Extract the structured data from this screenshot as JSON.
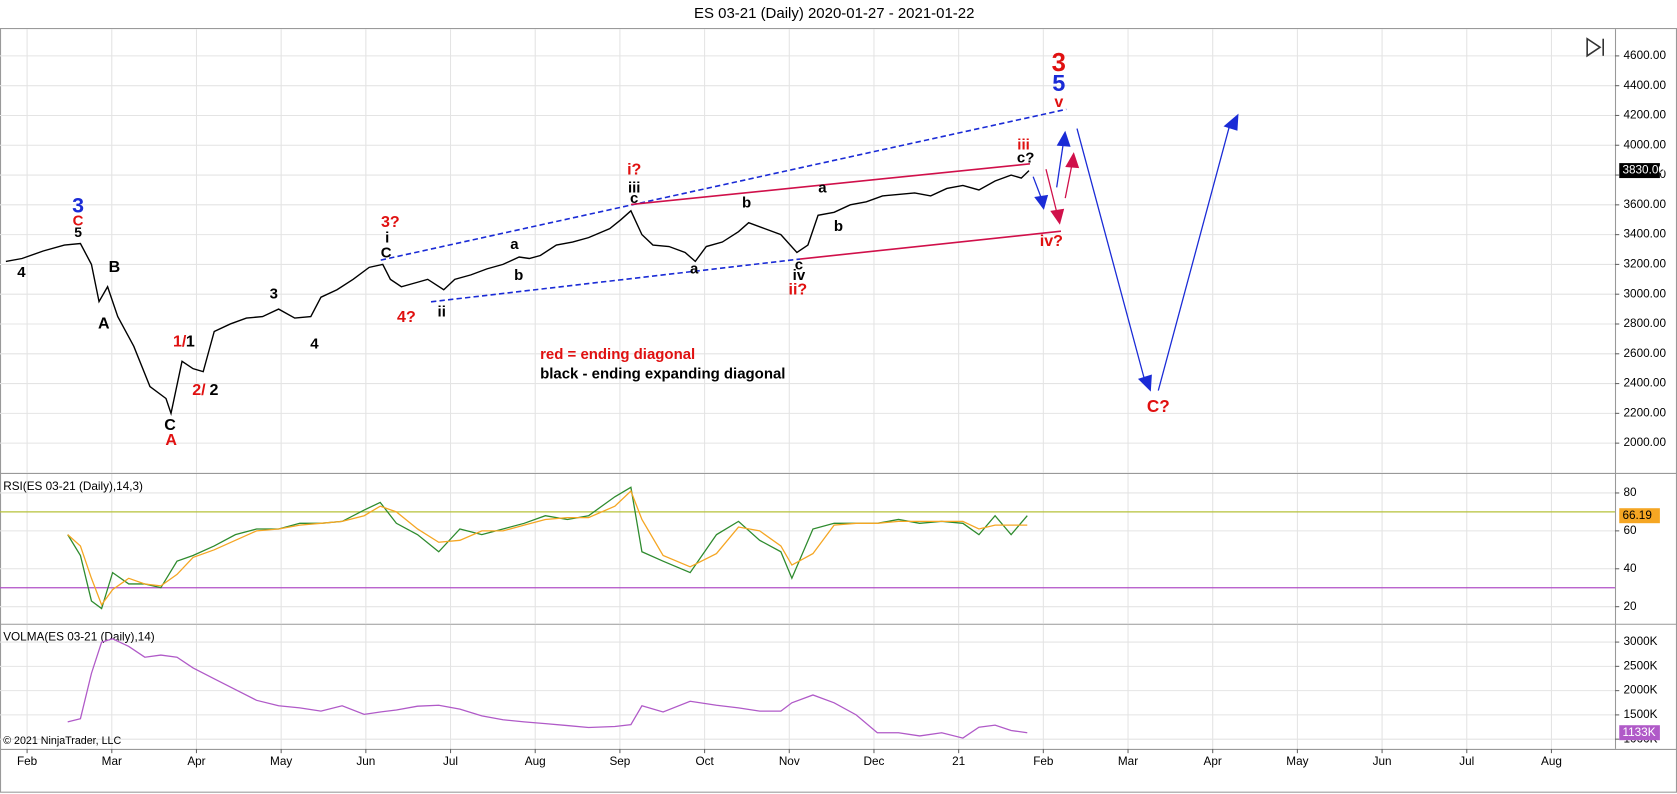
{
  "title": "ES 03-21 (Daily)  2020-01-27 - 2021-01-22",
  "copyright": "© 2021 NinjaTrader, LLC",
  "chart_data": [
    {
      "type": "line",
      "title": "ES 03-21 (Daily)",
      "xlim": [
        -0.32,
        18.75
      ],
      "xticks": [
        {
          "value": 0,
          "label": "Feb"
        },
        {
          "value": 1,
          "label": "Mar"
        },
        {
          "value": 2,
          "label": "Apr"
        },
        {
          "value": 3,
          "label": "May"
        },
        {
          "value": 4,
          "label": "Jun"
        },
        {
          "value": 5,
          "label": "Jul"
        },
        {
          "value": 6,
          "label": "Aug"
        },
        {
          "value": 7,
          "label": "Sep"
        },
        {
          "value": 8,
          "label": "Oct"
        },
        {
          "value": 9,
          "label": "Nov"
        },
        {
          "value": 10,
          "label": "Dec"
        },
        {
          "value": 11,
          "label": "21"
        },
        {
          "value": 12,
          "label": "Feb"
        },
        {
          "value": 13,
          "label": "Mar"
        },
        {
          "value": 14,
          "label": "Apr"
        },
        {
          "value": 15,
          "label": "May"
        },
        {
          "value": 16,
          "label": "Jun"
        },
        {
          "value": 17,
          "label": "Jul"
        },
        {
          "value": 18,
          "label": "Aug"
        }
      ],
      "ylim": [
        1800,
        4780
      ],
      "yticks": [
        {
          "value": 2000,
          "label": "2000.00"
        },
        {
          "value": 2200,
          "label": "2200.00"
        },
        {
          "value": 2400,
          "label": "2400.00"
        },
        {
          "value": 2600,
          "label": "2600.00"
        },
        {
          "value": 2800,
          "label": "2800.00"
        },
        {
          "value": 3000,
          "label": "3000.00"
        },
        {
          "value": 3200,
          "label": "3200.00"
        },
        {
          "value": 3400,
          "label": "3400.00"
        },
        {
          "value": 3600,
          "label": "3600.00"
        },
        {
          "value": 3800,
          "label": "3800.00"
        },
        {
          "value": 4000,
          "label": "4000.00"
        },
        {
          "value": 4200,
          "label": "4200.00"
        },
        {
          "value": 4400,
          "label": "4400.00"
        },
        {
          "value": 4600,
          "label": "4600.00"
        }
      ],
      "grid": true,
      "x": [
        -0.25,
        -0.06,
        0.19,
        0.44,
        0.63,
        0.76,
        0.85,
        0.95,
        1.07,
        1.26,
        1.45,
        1.64,
        1.7,
        1.83,
        1.96,
        2.08,
        2.21,
        2.4,
        2.59,
        2.78,
        2.97,
        3.16,
        3.35,
        3.47,
        3.66,
        3.85,
        4.04,
        4.2,
        4.29,
        4.42,
        4.61,
        4.73,
        4.92,
        5.05,
        5.24,
        5.43,
        5.62,
        5.81,
        5.93,
        6.06,
        6.25,
        6.44,
        6.63,
        6.88,
        7.01,
        7.13,
        7.26,
        7.39,
        7.58,
        7.77,
        7.89,
        8.02,
        8.21,
        8.4,
        8.52,
        8.71,
        8.9,
        9.09,
        9.22,
        9.34,
        9.53,
        9.72,
        9.91,
        10.1,
        10.29,
        10.48,
        10.67,
        10.86,
        11.05,
        11.24,
        11.43,
        11.62,
        11.74,
        11.83
      ],
      "series": [
        {
          "name": "ES 03-21",
          "color": "#000000",
          "values": [
            3220,
            3240,
            3290,
            3330,
            3340,
            3200,
            2950,
            3050,
            2850,
            2650,
            2380,
            2300,
            2200,
            2550,
            2500,
            2480,
            2750,
            2800,
            2840,
            2850,
            2900,
            2840,
            2850,
            2980,
            3030,
            3100,
            3180,
            3200,
            3100,
            3050,
            3080,
            3100,
            3030,
            3100,
            3130,
            3170,
            3200,
            3250,
            3240,
            3260,
            3330,
            3350,
            3380,
            3440,
            3500,
            3560,
            3400,
            3330,
            3320,
            3280,
            3220,
            3320,
            3350,
            3420,
            3480,
            3440,
            3400,
            3280,
            3330,
            3530,
            3550,
            3600,
            3620,
            3660,
            3670,
            3680,
            3660,
            3710,
            3730,
            3700,
            3760,
            3800,
            3780,
            3830
          ]
        }
      ],
      "last_label": "3830.00",
      "annotations": [
        {
          "text": "3",
          "color": "#1a2bd6"
        },
        {
          "text": "C",
          "color": "#e01010"
        },
        {
          "text": "5",
          "color": "#000000"
        },
        {
          "text": "4",
          "color": "#000000"
        },
        {
          "text": "B",
          "color": "#000000"
        },
        {
          "text": "A",
          "color": "#000000"
        },
        {
          "text": "1/",
          "color": "#e01010"
        },
        {
          "text": "1",
          "color": "#000000"
        },
        {
          "text": "2/",
          "color": "#e01010"
        },
        {
          "text": "2",
          "color": "#000000"
        },
        {
          "text": "C",
          "color": "#000000"
        },
        {
          "text": "A",
          "color": "#e01010"
        },
        {
          "text": "3",
          "color": "#000000"
        },
        {
          "text": "4",
          "color": "#000000"
        },
        {
          "text": "3?",
          "color": "#e01010"
        },
        {
          "text": "i",
          "color": "#000000"
        },
        {
          "text": "C",
          "color": "#000000"
        },
        {
          "text": "4?",
          "color": "#e01010"
        },
        {
          "text": "ii",
          "color": "#000000"
        },
        {
          "text": "a",
          "color": "#000000"
        },
        {
          "text": "b",
          "color": "#000000"
        },
        {
          "text": "i?",
          "color": "#e01010"
        },
        {
          "text": "iii",
          "color": "#000000"
        },
        {
          "text": "c",
          "color": "#000000"
        },
        {
          "text": "a",
          "color": "#000000"
        },
        {
          "text": "b",
          "color": "#000000"
        },
        {
          "text": "c",
          "color": "#000000"
        },
        {
          "text": "iv",
          "color": "#000000"
        },
        {
          "text": "ii?",
          "color": "#e01010"
        },
        {
          "text": "a",
          "color": "#000000"
        },
        {
          "text": "b",
          "color": "#000000"
        },
        {
          "text": "iii",
          "color": "#e01010"
        },
        {
          "text": "c?",
          "color": "#000000"
        },
        {
          "text": "3",
          "color": "#e01010"
        },
        {
          "text": "5",
          "color": "#1a2bd6"
        },
        {
          "text": "v",
          "color": "#e01010"
        },
        {
          "text": "iv?",
          "color": "#e01010"
        },
        {
          "text": "C?",
          "color": "#e01010"
        }
      ],
      "notes": [
        {
          "text": "red = ending diagonal",
          "color": "#e01010"
        },
        {
          "text": "black - ending expanding diagonal",
          "color": "#000000"
        }
      ]
    },
    {
      "type": "line",
      "title": "RSI(ES 03-21 (Daily),14,3)",
      "ylim": [
        11,
        90
      ],
      "yticks": [
        20,
        40,
        60,
        80
      ],
      "hlines": [
        {
          "value": 70,
          "color": "#b5c23a"
        },
        {
          "value": 30,
          "color": "#b04fc7"
        }
      ],
      "x": [
        0.48,
        0.63,
        0.76,
        0.88,
        1.01,
        1.2,
        1.39,
        1.58,
        1.77,
        1.96,
        2.21,
        2.46,
        2.71,
        2.97,
        3.22,
        3.47,
        3.72,
        3.98,
        4.17,
        4.36,
        4.61,
        4.86,
        5.11,
        5.37,
        5.62,
        5.87,
        6.12,
        6.38,
        6.63,
        6.94,
        7.13,
        7.26,
        7.51,
        7.83,
        8.14,
        8.4,
        8.65,
        8.9,
        9.03,
        9.28,
        9.53,
        9.79,
        10.04,
        10.29,
        10.54,
        10.8,
        11.05,
        11.24,
        11.43,
        11.62,
        11.81
      ],
      "series": [
        {
          "name": "RSI",
          "color": "#2e8b2e",
          "values": [
            58,
            47,
            23,
            19,
            38,
            32,
            32,
            30,
            44,
            47,
            52,
            58,
            61,
            61,
            64,
            64,
            65,
            71,
            75,
            64,
            58,
            49,
            61,
            58,
            61,
            64,
            68,
            66,
            68,
            78,
            83,
            49,
            44,
            38,
            58,
            65,
            55,
            49,
            35,
            61,
            64,
            64,
            64,
            66,
            64,
            65,
            64,
            58,
            68,
            58,
            68
          ]
        },
        {
          "name": "Avg",
          "color": "#f5a623",
          "values": [
            58,
            52,
            35,
            21,
            29,
            35,
            32,
            31,
            37,
            46,
            50,
            55,
            60,
            61,
            63,
            64,
            65,
            68,
            73,
            70,
            61,
            54,
            55,
            60,
            60,
            63,
            66,
            67,
            67,
            73,
            81,
            66,
            47,
            41,
            48,
            62,
            60,
            52,
            42,
            48,
            63,
            64,
            64,
            65,
            65,
            65,
            65,
            61,
            63,
            63,
            63
          ]
        }
      ],
      "last_label": "66.19"
    },
    {
      "type": "line",
      "title": "VOLMA(ES 03-21 (Daily),14)",
      "ylim": [
        800,
        3356
      ],
      "yticks": [
        {
          "value": 1000,
          "label": "1000K"
        },
        {
          "value": 1500,
          "label": "1500K"
        },
        {
          "value": 2000,
          "label": "2000K"
        },
        {
          "value": 2500,
          "label": "2500K"
        },
        {
          "value": 3000,
          "label": "3000K"
        }
      ],
      "x": [
        0.48,
        0.63,
        0.76,
        0.88,
        1.01,
        1.2,
        1.39,
        1.58,
        1.77,
        1.96,
        2.21,
        2.46,
        2.71,
        2.97,
        3.22,
        3.47,
        3.72,
        3.98,
        4.17,
        4.36,
        4.61,
        4.86,
        5.11,
        5.37,
        5.62,
        5.87,
        6.12,
        6.38,
        6.63,
        6.94,
        7.13,
        7.26,
        7.51,
        7.83,
        8.14,
        8.4,
        8.65,
        8.9,
        9.03,
        9.28,
        9.53,
        9.79,
        10.04,
        10.29,
        10.54,
        10.8,
        11.05,
        11.24,
        11.43,
        11.62,
        11.81
      ],
      "series": [
        {
          "name": "VOLMA",
          "color": "#b05ac8",
          "values": [
            1356,
            1422,
            2356,
            3000,
            3067,
            2911,
            2689,
            2733,
            2689,
            2467,
            2244,
            2022,
            1800,
            1689,
            1644,
            1578,
            1689,
            1511,
            1560,
            1600,
            1680,
            1700,
            1620,
            1480,
            1400,
            1356,
            1320,
            1280,
            1240,
            1260,
            1300,
            1689,
            1560,
            1780,
            1700,
            1644,
            1578,
            1578,
            1750,
            1911,
            1750,
            1500,
            1133,
            1133,
            1067,
            1133,
            1022,
            1244,
            1289,
            1178,
            1133
          ]
        }
      ],
      "last_label": "1133K"
    }
  ]
}
